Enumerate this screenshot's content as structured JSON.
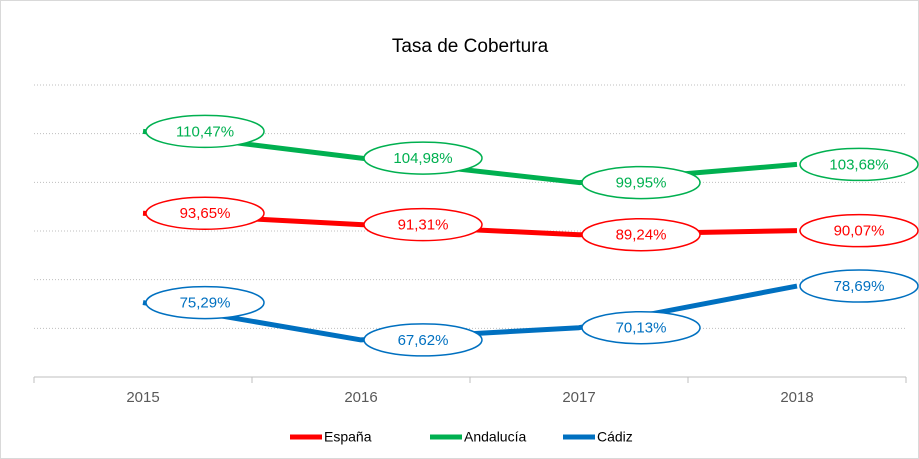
{
  "chart_data": {
    "type": "line",
    "title": "Tasa de Cobertura",
    "categories": [
      "2015",
      "2016",
      "2017",
      "2018"
    ],
    "series": [
      {
        "name": "España",
        "color": "#ff0000",
        "values": [
          93.65,
          91.31,
          89.24,
          90.07
        ],
        "value_labels": [
          "93,65%",
          "91,31%",
          "89,24%",
          "90,07%"
        ]
      },
      {
        "name": "Andalucía",
        "color": "#00b050",
        "values": [
          110.47,
          104.98,
          99.95,
          103.68
        ],
        "value_labels": [
          "110,47%",
          "104,98%",
          "99,95%",
          "103,68%"
        ]
      },
      {
        "name": "Cádiz",
        "color": "#0070c0",
        "values": [
          75.29,
          67.62,
          70.13,
          78.69
        ],
        "value_labels": [
          "75,29%",
          "67,62%",
          "70,13%",
          "78,69%"
        ]
      }
    ],
    "ylim": [
      60,
      120
    ],
    "yticks": [
      60,
      70,
      80,
      90,
      100,
      110,
      120
    ],
    "grid": true,
    "legend": "bottom"
  }
}
